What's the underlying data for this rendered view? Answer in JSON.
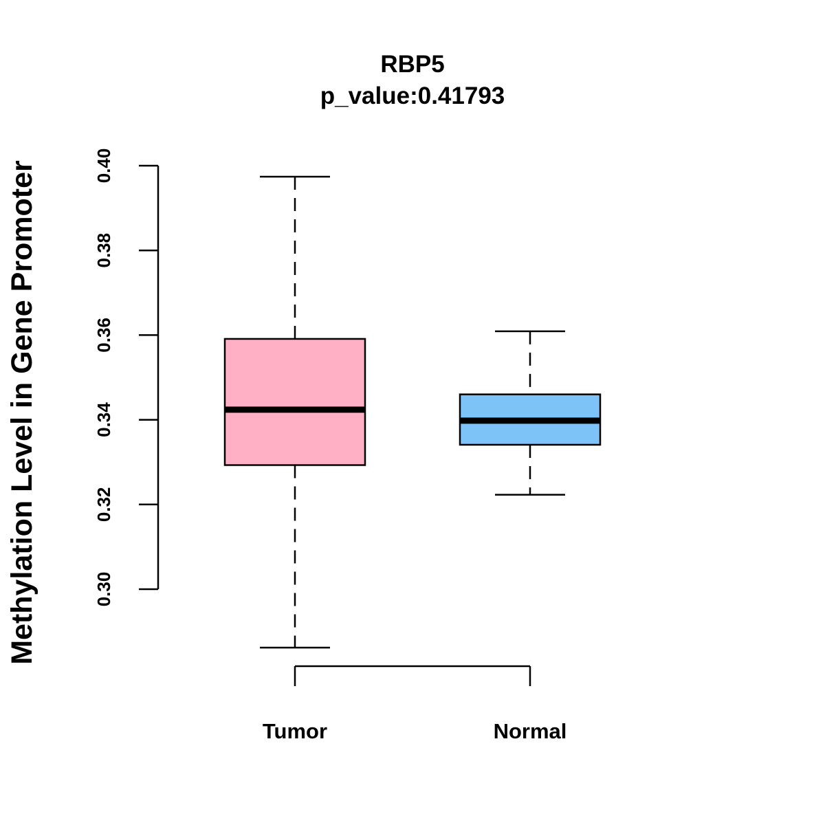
{
  "chart_data": {
    "type": "boxplot",
    "title": "RBP5",
    "subtitle": "p_value:0.41793",
    "xlabel": "",
    "ylabel": "Methylation Level in Gene Promoter",
    "ylim": [
      0.3,
      0.4
    ],
    "y_ticks": [
      0.3,
      0.32,
      0.34,
      0.36,
      0.38,
      0.4
    ],
    "y_tick_labels": [
      "0.30",
      "0.32",
      "0.34",
      "0.36",
      "0.38",
      "0.40"
    ],
    "grid": false,
    "categories": [
      "Tumor",
      "Normal"
    ],
    "series": [
      {
        "name": "Tumor",
        "min": 0.2862,
        "q1": 0.3293,
        "median": 0.3424,
        "q3": 0.3591,
        "max": 0.3974,
        "color": "#FFB0C4"
      },
      {
        "name": "Normal",
        "min": 0.3223,
        "q1": 0.3341,
        "median": 0.3398,
        "q3": 0.346,
        "max": 0.3609,
        "color": "#7DC3F7"
      }
    ]
  }
}
